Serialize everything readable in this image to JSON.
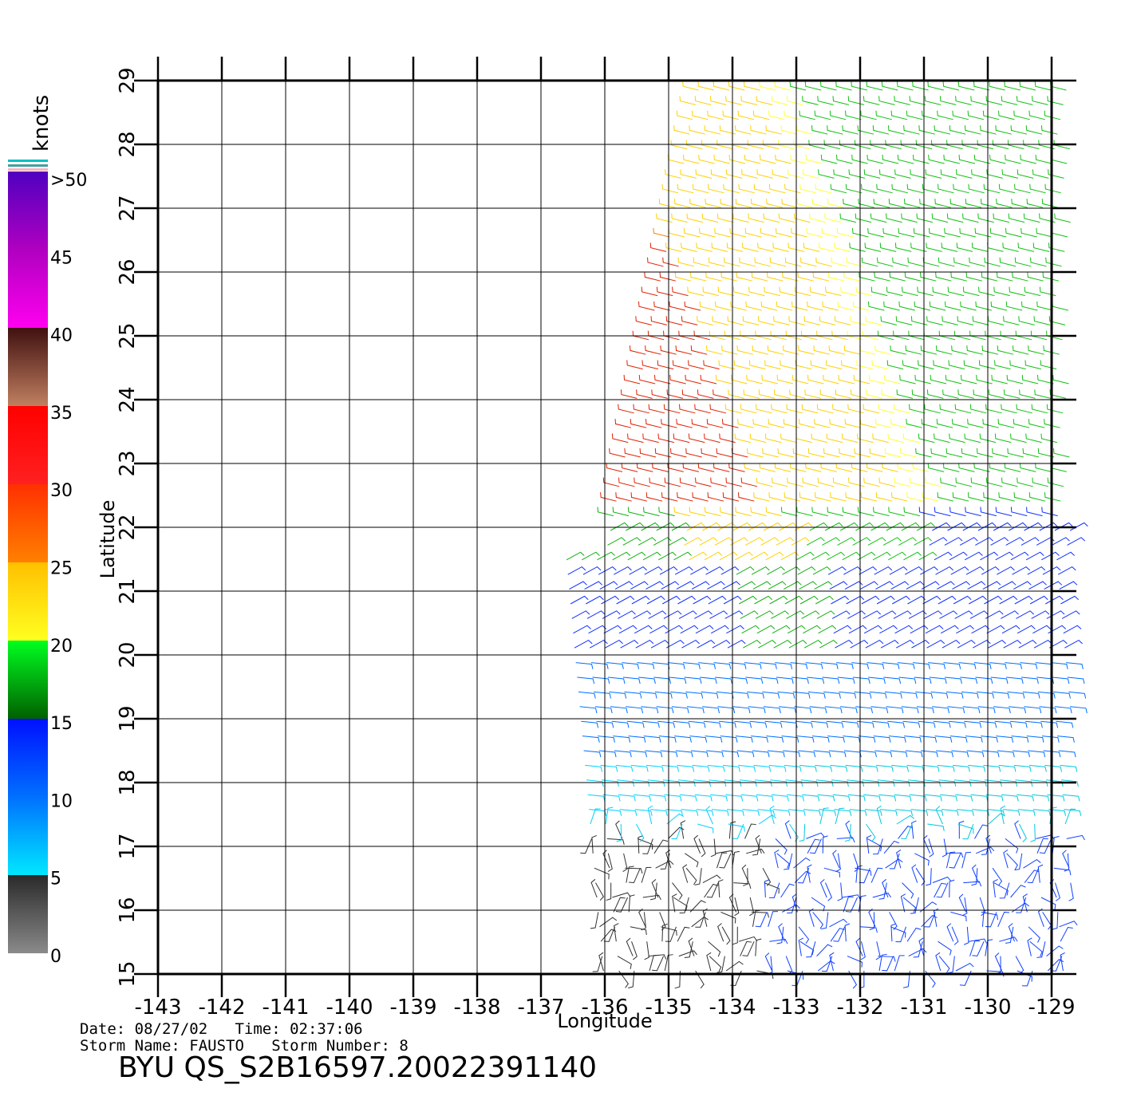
{
  "map": {
    "x_axis": {
      "label": "Longitude",
      "lim": [
        -143,
        -129
      ],
      "ticks": [
        -143,
        -142,
        -141,
        -140,
        -139,
        -138,
        -137,
        -136,
        -135,
        -134,
        -133,
        -132,
        -131,
        -130,
        -129
      ]
    },
    "y_axis": {
      "label": "Latitude",
      "lim": [
        15,
        29
      ],
      "ticks": [
        15,
        16,
        17,
        18,
        19,
        20,
        21,
        22,
        23,
        24,
        25,
        26,
        27,
        28,
        29
      ]
    },
    "colorbar": {
      "title": "knots",
      "lim": [
        0,
        50
      ],
      "ticks": [
        0,
        5,
        10,
        15,
        20,
        25,
        30,
        35,
        40,
        45,
        {
          "value": 50,
          "label": ">50"
        }
      ]
    },
    "info": {
      "date_time": "Date: 08/27/02   Time: 02:37:06",
      "storm": "Storm Name: FAUSTO   Storm Number: 8"
    },
    "title": "BYU QS_S2B16597.20022391140"
  }
}
